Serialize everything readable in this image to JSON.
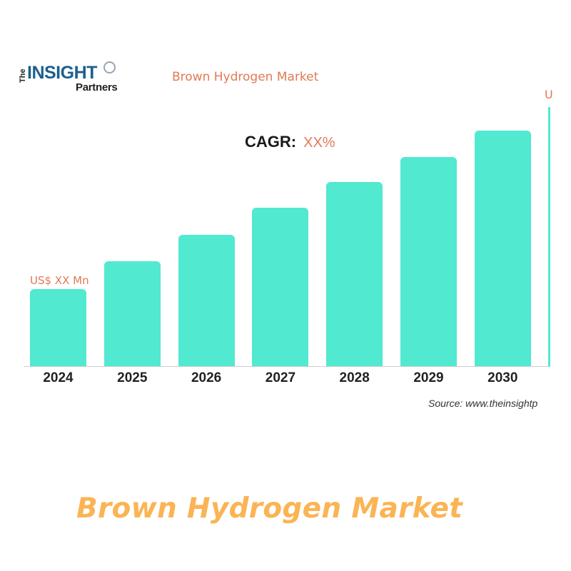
{
  "logo": {
    "the": "The",
    "insight": "INSIGHT",
    "partners": "Partners"
  },
  "header": {
    "chart_title": "Brown Hydrogen Market"
  },
  "cagr": {
    "label": "CAGR:",
    "value": "XX%"
  },
  "annotations": {
    "first_bar_label": "US$ XX Mn",
    "last_bar_label_partial": "U"
  },
  "source": "Source: www.theinsightp",
  "caption": "Brown Hydrogen Market",
  "colors": {
    "bar": "#51e9d0",
    "accent_text": "#e07a55",
    "caption": "#fbb454",
    "logo_blue": "#1c5f8e"
  },
  "chart_data": {
    "type": "bar",
    "title": "Brown Hydrogen Market",
    "categories": [
      "2024",
      "2025",
      "2026",
      "2027",
      "2028",
      "2029",
      "2030"
    ],
    "values": [
      108,
      147,
      184,
      222,
      258,
      293,
      330
    ],
    "value_units": "relative pixel height (no numeric axis shown)",
    "annotations": [
      {
        "category": "2024",
        "text": "US$ XX Mn"
      },
      {
        "category": "2031 (cropped)",
        "text": "U..."
      }
    ],
    "subtitle": "CAGR: XX%",
    "xlabel": "",
    "ylabel": "",
    "grid": false,
    "legend": null,
    "source": "Source: www.theinsightp"
  }
}
